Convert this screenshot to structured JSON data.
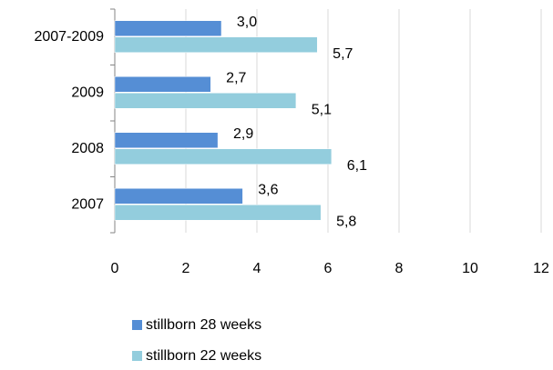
{
  "chart_data": {
    "type": "bar",
    "orientation": "horizontal",
    "categories": [
      "2007-2009",
      "2009",
      "2008",
      "2007"
    ],
    "series": [
      {
        "name": "stillborn 28 weeks",
        "color": "#558ed5",
        "values": [
          3.0,
          2.7,
          2.9,
          3.6
        ],
        "value_labels": [
          "3,0",
          "2,7",
          "2,9",
          "3,6"
        ]
      },
      {
        "name": "stillborn 22 weeks",
        "color": "#93cddd",
        "values": [
          5.7,
          5.1,
          6.1,
          5.8
        ],
        "value_labels": [
          "5,7",
          "5,1",
          "6,1",
          "5,8"
        ]
      }
    ],
    "xlim": [
      0,
      12
    ],
    "xticks": [
      0,
      2,
      4,
      6,
      8,
      10,
      12
    ],
    "grid": true
  }
}
